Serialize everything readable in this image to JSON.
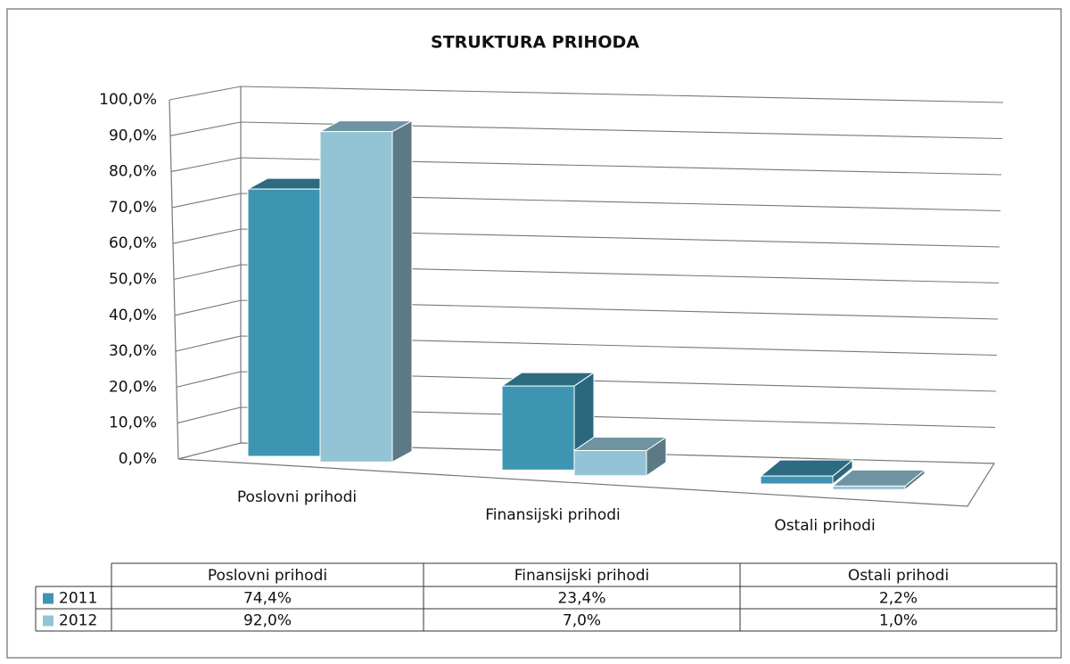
{
  "chart_data": {
    "type": "bar3d",
    "title": "STRUKTURA PRIHODA",
    "categories": [
      "Poslovni prihodi",
      "Finansijski prihodi",
      "Ostali prihodi"
    ],
    "series": [
      {
        "name": "2011",
        "color": "#3d95b2",
        "values": [
          74.4,
          23.4,
          2.2
        ],
        "value_labels": [
          "74,4%",
          "23,4%",
          "2,2%"
        ]
      },
      {
        "name": "2012",
        "color": "#93c4d6",
        "values": [
          92.0,
          7.0,
          1.0
        ],
        "value_labels": [
          "92,0%",
          "7,0%",
          "1,0%"
        ]
      }
    ],
    "ylim": [
      0,
      100
    ],
    "yticks": [
      {
        "value": 0,
        "label": "0,0%"
      },
      {
        "value": 10,
        "label": "10,0%"
      },
      {
        "value": 20,
        "label": "20,0%"
      },
      {
        "value": 30,
        "label": "30,0%"
      },
      {
        "value": 40,
        "label": "40,0%"
      },
      {
        "value": 50,
        "label": "50,0%"
      },
      {
        "value": 60,
        "label": "60,0%"
      },
      {
        "value": 70,
        "label": "70,0%"
      },
      {
        "value": 80,
        "label": "80,0%"
      },
      {
        "value": 90,
        "label": "90,0%"
      },
      {
        "value": 100,
        "label": "100,0%"
      }
    ],
    "grid": true,
    "data_table": true
  }
}
